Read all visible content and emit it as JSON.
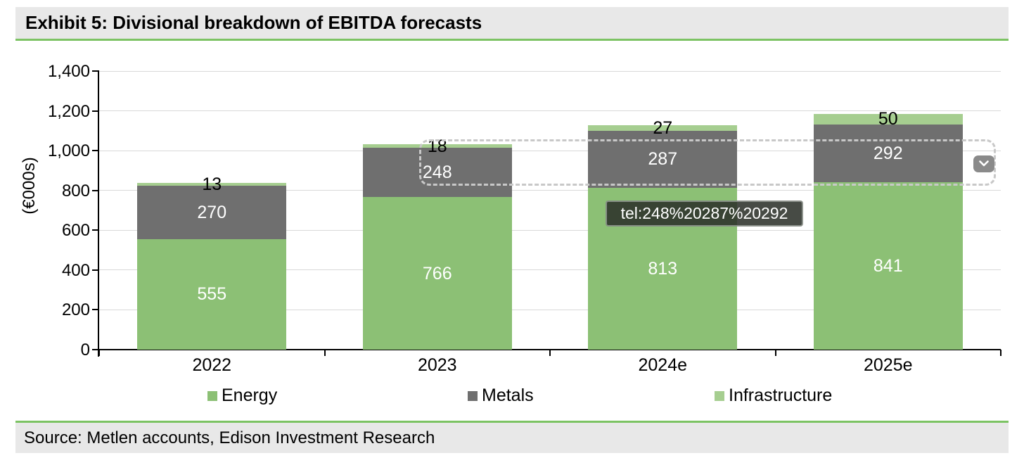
{
  "header": {
    "title": "Exhibit 5: Divisional breakdown of EBITDA forecasts"
  },
  "footer": {
    "source": "Source: Metlen accounts, Edison Investment Research"
  },
  "overlay": {
    "tooltip_text": "tel:248%20287%20292",
    "chevron_icon": "chevron-down-icon"
  },
  "colors": {
    "accent_green": "#7CC363",
    "panel_bg": "#E8E8E8",
    "energy": "#8CC075",
    "metals": "#6F6F6F",
    "infrastructure": "#A6CE90",
    "gridline": "#D9D9D9",
    "selection_dash": "#C8C8C8",
    "chevron_button_bg": "#8A8A8A"
  },
  "chart_data": {
    "type": "bar",
    "stacked": true,
    "title": "Exhibit 5: Divisional breakdown of EBITDA forecasts",
    "categories": [
      "2022",
      "2023",
      "2024e",
      "2025e"
    ],
    "series": [
      {
        "name": "Energy",
        "color": "#8CC075",
        "label_color": "#ffffff",
        "values": [
          555,
          766,
          813,
          841
        ]
      },
      {
        "name": "Metals",
        "color": "#6F6F6F",
        "label_color": "#ffffff",
        "values": [
          270,
          248,
          287,
          292
        ]
      },
      {
        "name": "Infrastructure",
        "color": "#A6CE90",
        "label_color": "#000000",
        "values": [
          13,
          18,
          27,
          50
        ]
      }
    ],
    "totals": [
      838,
      1032,
      1127,
      1183
    ],
    "xlabel": "",
    "ylabel": "(€000s)",
    "ylim": [
      0,
      1400
    ],
    "ytick_step": 200,
    "yticks": [
      "0",
      "200",
      "400",
      "600",
      "800",
      "1,000",
      "1,200",
      "1,400"
    ],
    "grid": true,
    "legend_position": "bottom",
    "legend": [
      "Energy",
      "Metals",
      "Infrastructure"
    ]
  }
}
